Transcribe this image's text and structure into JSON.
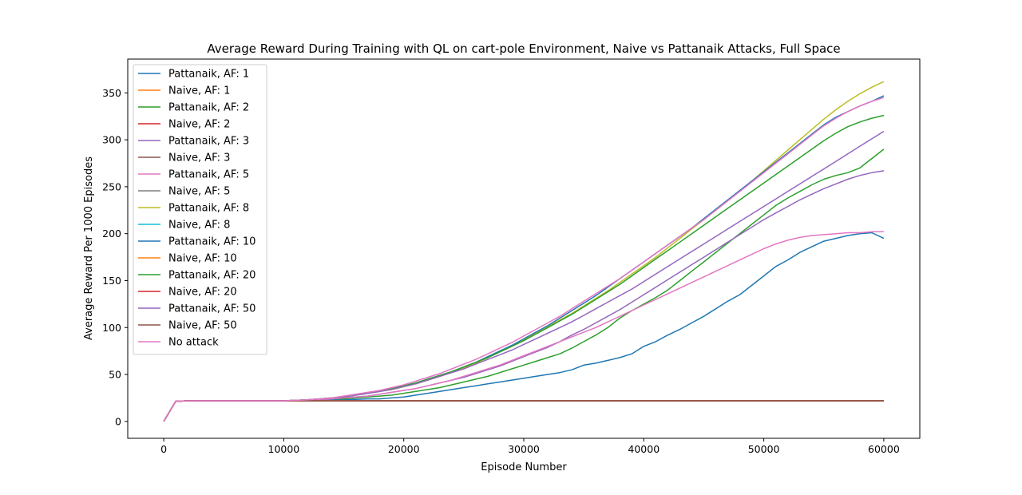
{
  "chart_data": {
    "type": "line",
    "title": "Average Reward During Training with QL on cart-pole Environment, Naive vs Pattanaik Attacks, Full Space",
    "xlabel": "Episode Number",
    "ylabel": "Average Reward Per 1000 Episodes",
    "xlim": [
      -3000,
      63000
    ],
    "ylim": [
      -18,
      386
    ],
    "xticks": [
      0,
      10000,
      20000,
      30000,
      40000,
      50000,
      60000
    ],
    "yticks": [
      0,
      50,
      100,
      150,
      200,
      250,
      300,
      350
    ],
    "grid": false,
    "legend_position": "top-left",
    "x_step": 1000,
    "series": [
      {
        "name": "Pattanaik, AF: 1",
        "color": "#1f77b4",
        "values": [
          0,
          21.5,
          22,
          22,
          22,
          22,
          22,
          22,
          22,
          22,
          22,
          22,
          22,
          22.5,
          23,
          23,
          23.5,
          24,
          24,
          25,
          26,
          28,
          30,
          32,
          34,
          36,
          38,
          40,
          42,
          44,
          46,
          48,
          50,
          52,
          55,
          60,
          62,
          65,
          68,
          72,
          80,
          85,
          92,
          98,
          105,
          112,
          120,
          128,
          135,
          145,
          155,
          165,
          172,
          180,
          186,
          192,
          195,
          198,
          200,
          201,
          195
        ]
      },
      {
        "name": "Naive, AF: 1",
        "color": "#ff7f0e",
        "values": [
          0,
          21.5,
          22,
          22,
          22,
          22,
          22,
          22,
          22,
          22,
          22,
          22,
          22,
          22,
          22,
          22,
          22,
          22,
          22,
          22,
          22,
          22,
          22,
          22,
          22,
          22,
          22,
          22,
          22,
          22,
          22,
          22,
          22,
          22,
          22,
          22,
          22,
          22,
          22,
          22,
          22,
          22,
          22,
          22,
          22,
          22,
          22,
          22,
          22,
          22,
          22,
          22,
          22,
          22,
          22,
          22,
          22,
          22,
          22,
          22,
          22
        ]
      },
      {
        "name": "Pattanaik, AF: 2",
        "color": "#2ca02c",
        "values": [
          0,
          21.5,
          22,
          22,
          22,
          22,
          22,
          22,
          22,
          22,
          22,
          22.5,
          23,
          23.5,
          24,
          24,
          25,
          26,
          27,
          28,
          30,
          32,
          34,
          36,
          39,
          42,
          45,
          48,
          52,
          56,
          60,
          64,
          68,
          72,
          78,
          85,
          92,
          100,
          110,
          118,
          125,
          132,
          140,
          150,
          160,
          170,
          180,
          190,
          200,
          210,
          220,
          230,
          238,
          245,
          252,
          258,
          262,
          265,
          270,
          280,
          290
        ]
      },
      {
        "name": "Naive, AF: 2",
        "color": "#d62728",
        "values": [
          0,
          21.5,
          22,
          22,
          22,
          22,
          22,
          22,
          22,
          22,
          22,
          22,
          22,
          22,
          22,
          22,
          22,
          22,
          22,
          22,
          22,
          22,
          22,
          22,
          22,
          22,
          22,
          22,
          22,
          22,
          22,
          22,
          22,
          22,
          22,
          22,
          22,
          22,
          22,
          22,
          22,
          22,
          22,
          22,
          22,
          22,
          22,
          22,
          22,
          22,
          22,
          22,
          22,
          22,
          22,
          22,
          22,
          22,
          22,
          22,
          22
        ]
      },
      {
        "name": "Pattanaik, AF: 3",
        "color": "#9467bd",
        "values": [
          0,
          21.5,
          22,
          22,
          22,
          22,
          22,
          22,
          22,
          22,
          22,
          22,
          22.5,
          23,
          24,
          25,
          26,
          27,
          29,
          31,
          33,
          35,
          38,
          41,
          44,
          47,
          51,
          55,
          59,
          64,
          69,
          74,
          79,
          85,
          92,
          98,
          105,
          112,
          119,
          127,
          135,
          143,
          151,
          159,
          167,
          175,
          183,
          191,
          199,
          207,
          215,
          222,
          229,
          236,
          242,
          248,
          253,
          258,
          262,
          265,
          267
        ]
      },
      {
        "name": "Naive, AF: 3",
        "color": "#8c564b",
        "values": [
          0,
          21.5,
          22,
          22,
          22,
          22,
          22,
          22,
          22,
          22,
          22,
          22,
          22,
          22,
          22,
          22,
          22,
          22,
          22,
          22,
          22,
          22,
          22,
          22,
          22,
          22,
          22,
          22,
          22,
          22,
          22,
          22,
          22,
          22,
          22,
          22,
          22,
          22,
          22,
          22,
          22,
          22,
          22,
          22,
          22,
          22,
          22,
          22,
          22,
          22,
          22,
          22,
          22,
          22,
          22,
          22,
          22,
          22,
          22,
          22,
          22
        ]
      },
      {
        "name": "Pattanaik, AF: 5",
        "color": "#e377c2",
        "values": [
          0,
          21.5,
          22,
          22,
          22,
          22,
          22,
          22,
          22,
          22,
          22,
          22.5,
          23,
          23.5,
          24,
          25,
          26,
          27,
          29,
          31,
          33,
          35,
          38,
          41,
          44,
          48,
          52,
          56,
          60,
          65,
          70,
          75,
          80,
          85,
          90,
          95,
          100,
          106,
          112,
          118,
          124,
          130,
          136,
          142,
          148,
          154,
          160,
          166,
          172,
          178,
          184,
          189,
          193,
          196,
          198,
          199,
          200,
          201,
          201,
          202,
          202
        ]
      },
      {
        "name": "Naive, AF: 5",
        "color": "#7f7f7f",
        "values": [
          0,
          21.5,
          22,
          22,
          22,
          22,
          22,
          22,
          22,
          22,
          22,
          22,
          22,
          22,
          22,
          22,
          22,
          22,
          22,
          22,
          22,
          22,
          22,
          22,
          22,
          22,
          22,
          22,
          22,
          22,
          22,
          22,
          22,
          22,
          22,
          22,
          22,
          22,
          22,
          22,
          22,
          22,
          22,
          22,
          22,
          22,
          22,
          22,
          22,
          22,
          22,
          22,
          22,
          22,
          22,
          22,
          22,
          22,
          22,
          22,
          22
        ]
      },
      {
        "name": "Pattanaik, AF: 8",
        "color": "#bcbd22",
        "values": [
          0,
          21.5,
          22,
          22,
          22,
          22,
          22,
          22,
          22,
          22,
          22,
          22.5,
          23,
          24,
          25,
          26,
          28,
          30,
          32,
          34,
          37,
          40,
          44,
          48,
          52,
          57,
          62,
          68,
          74,
          80,
          87,
          94,
          101,
          108,
          115,
          123,
          131,
          139,
          148,
          157,
          166,
          175,
          185,
          195,
          205,
          215,
          225,
          235,
          245,
          256,
          267,
          278,
          289,
          300,
          311,
          322,
          332,
          341,
          349,
          356,
          362
        ]
      },
      {
        "name": "Naive, AF: 8",
        "color": "#17becf",
        "values": [
          0,
          21.5,
          22,
          22,
          22,
          22,
          22,
          22,
          22,
          22,
          22,
          22,
          22,
          22,
          22,
          22,
          22,
          22,
          22,
          22,
          22,
          22,
          22,
          22,
          22,
          22,
          22,
          22,
          22,
          22,
          22,
          22,
          22,
          22,
          22,
          22,
          22,
          22,
          22,
          22,
          22,
          22,
          22,
          22,
          22,
          22,
          22,
          22,
          22,
          22,
          22,
          22,
          22,
          22,
          22,
          22,
          22,
          22,
          22,
          22,
          22
        ]
      },
      {
        "name": "Pattanaik, AF: 10",
        "color": "#1f77b4",
        "values": [
          0,
          21.5,
          22,
          22,
          22,
          22,
          22,
          22,
          22,
          22,
          22,
          22.5,
          23,
          24,
          25,
          26,
          28,
          30,
          32,
          35,
          38,
          41,
          45,
          49,
          53,
          58,
          63,
          69,
          75,
          81,
          88,
          95,
          102,
          110,
          118,
          126,
          134,
          143,
          152,
          161,
          170,
          179,
          188,
          197,
          206,
          216,
          226,
          236,
          246,
          256,
          266,
          276,
          286,
          296,
          306,
          316,
          324,
          330,
          336,
          341,
          347
        ]
      },
      {
        "name": "Naive, AF: 10",
        "color": "#ff7f0e",
        "values": [
          0,
          21.5,
          22,
          22,
          22,
          22,
          22,
          22,
          22,
          22,
          22,
          22,
          22,
          22,
          22,
          22,
          22,
          22,
          22,
          22,
          22,
          22,
          22,
          22,
          22,
          22,
          22,
          22,
          22,
          22,
          22,
          22,
          22,
          22,
          22,
          22,
          22,
          22,
          22,
          22,
          22,
          22,
          22,
          22,
          22,
          22,
          22,
          22,
          22,
          22,
          22,
          22,
          22,
          22,
          22,
          22,
          22,
          22,
          22,
          22,
          22
        ]
      },
      {
        "name": "Pattanaik, AF: 20",
        "color": "#2ca02c",
        "values": [
          0,
          21.5,
          22,
          22,
          22,
          22,
          22,
          22,
          22,
          22,
          22,
          22.5,
          23,
          24,
          25,
          26,
          28,
          30,
          32,
          35,
          38,
          41,
          45,
          49,
          53,
          58,
          63,
          68,
          74,
          80,
          86,
          93,
          100,
          107,
          114,
          122,
          130,
          138,
          146,
          155,
          164,
          173,
          182,
          191,
          200,
          209,
          218,
          227,
          236,
          245,
          254,
          263,
          272,
          281,
          290,
          299,
          307,
          314,
          319,
          323,
          326
        ]
      },
      {
        "name": "Naive, AF: 20",
        "color": "#d62728",
        "values": [
          0,
          21.5,
          22,
          22,
          22,
          22,
          22,
          22,
          22,
          22,
          22,
          22,
          22,
          22,
          22,
          22,
          22,
          22,
          22,
          22,
          22,
          22,
          22,
          22,
          22,
          22,
          22,
          22,
          22,
          22,
          22,
          22,
          22,
          22,
          22,
          22,
          22,
          22,
          22,
          22,
          22,
          22,
          22,
          22,
          22,
          22,
          22,
          22,
          22,
          22,
          22,
          22,
          22,
          22,
          22,
          22,
          22,
          22,
          22,
          22,
          22
        ]
      },
      {
        "name": "Pattanaik, AF: 50",
        "color": "#9467bd",
        "values": [
          0,
          21.5,
          22,
          22,
          22,
          22,
          22,
          22,
          22,
          22,
          22,
          22.5,
          23,
          24,
          25,
          26,
          28,
          30,
          32,
          34,
          37,
          40,
          44,
          48,
          52,
          56,
          61,
          66,
          71,
          76,
          82,
          88,
          94,
          100,
          106,
          113,
          120,
          127,
          134,
          141,
          149,
          157,
          165,
          173,
          181,
          189,
          197,
          205,
          213,
          221,
          229,
          237,
          245,
          253,
          261,
          269,
          277,
          285,
          293,
          301,
          309
        ]
      },
      {
        "name": "Naive, AF: 50",
        "color": "#8c564b",
        "values": [
          0,
          21.5,
          22,
          22,
          22,
          22,
          22,
          22,
          22,
          22,
          22,
          22,
          22,
          22,
          22,
          22,
          22,
          22,
          22,
          22,
          22,
          22,
          22,
          22,
          22,
          22,
          22,
          22,
          22,
          22,
          22,
          22,
          22,
          22,
          22,
          22,
          22,
          22,
          22,
          22,
          22,
          22,
          22,
          22,
          22,
          22,
          22,
          22,
          22,
          22,
          22,
          22,
          22,
          22,
          22,
          22,
          22,
          22,
          22,
          22,
          22
        ]
      },
      {
        "name": "No attack",
        "color": "#e377c2",
        "values": [
          0,
          21.5,
          22,
          22,
          22,
          22,
          22,
          22,
          22,
          22,
          22,
          22.5,
          23,
          24,
          25,
          27,
          29,
          31,
          33,
          36,
          39,
          43,
          47,
          51,
          56,
          61,
          66,
          72,
          78,
          84,
          91,
          98,
          105,
          112,
          120,
          128,
          136,
          144,
          152,
          161,
          170,
          179,
          188,
          197,
          206,
          215,
          225,
          235,
          245,
          255,
          265,
          275,
          285,
          295,
          305,
          315,
          323,
          330,
          336,
          341,
          345
        ]
      }
    ]
  }
}
